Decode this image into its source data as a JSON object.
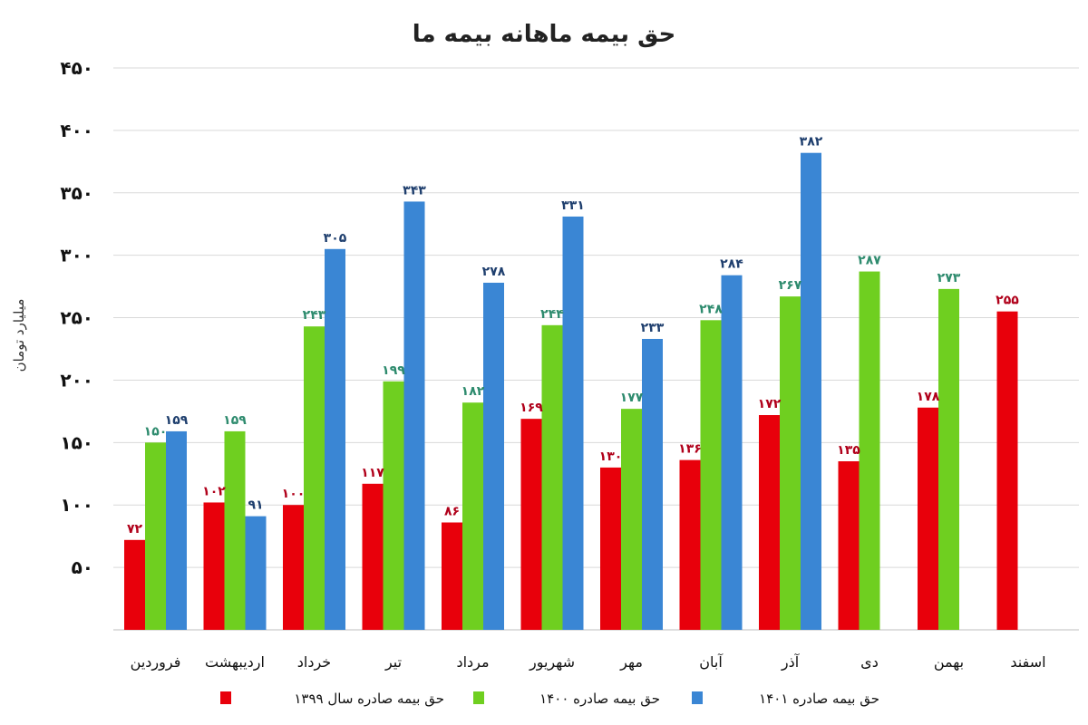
{
  "chart_data": {
    "type": "bar",
    "title": "حق بیمه ماهانه بیمه ما",
    "ylabel": "میلیارد تومان",
    "ylim": [
      0,
      450
    ],
    "yticks": [
      50,
      100,
      150,
      200,
      250,
      300,
      350,
      400,
      450
    ],
    "ytick_labels": [
      "۵۰",
      "۱۰۰",
      "۱۵۰",
      "۲۰۰",
      "۲۵۰",
      "۳۰۰",
      "۳۵۰",
      "۴۰۰",
      "۴۵۰"
    ],
    "grid": true,
    "legend_position": "bottom",
    "categories": [
      "فروردین",
      "اردیبهشت",
      "خرداد",
      "تیر",
      "مرداد",
      "شهریور",
      "مهر",
      "آبان",
      "آذر",
      "دی",
      "بهمن",
      "اسفند"
    ],
    "series": [
      {
        "name": "حق بیمه صادره سال ۱۳۹۹",
        "color": "#e8000b",
        "label_color": "#b0001a",
        "values": [
          72,
          102,
          100,
          117,
          86,
          169,
          130,
          136,
          172,
          135,
          178,
          255
        ],
        "labels": [
          "۷۲",
          "۱۰۲",
          "۱۰۰",
          "۱۱۷",
          "۸۶",
          "۱۶۹",
          "۱۳۰",
          "۱۳۶",
          "۱۷۲",
          "۱۳۵",
          "۱۷۸",
          "۲۵۵"
        ]
      },
      {
        "name": "حق بیمه صادره ۱۴۰۰",
        "color": "#6fcf20",
        "label_color": "#2e8b6e",
        "values": [
          150,
          159,
          243,
          199,
          182,
          244,
          177,
          248,
          267,
          287,
          273,
          null
        ],
        "labels": [
          "۱۵۰",
          "۱۵۹",
          "۲۴۳",
          "۱۹۹",
          "۱۸۲",
          "۲۴۴",
          "۱۷۷",
          "۲۴۸",
          "۲۶۷",
          "۲۸۷",
          "۲۷۳",
          ""
        ]
      },
      {
        "name": "حق بیمه صادره ۱۴۰۱",
        "color": "#3a86d4",
        "label_color": "#1f3f6e",
        "values": [
          159,
          91,
          305,
          343,
          278,
          331,
          233,
          284,
          382,
          null,
          null,
          null
        ],
        "labels": [
          "۱۵۹",
          "۹۱",
          "۳۰۵",
          "۳۴۳",
          "۲۷۸",
          "۳۳۱",
          "۲۳۳",
          "۲۸۴",
          "۳۸۲",
          "",
          "",
          ""
        ]
      }
    ]
  }
}
